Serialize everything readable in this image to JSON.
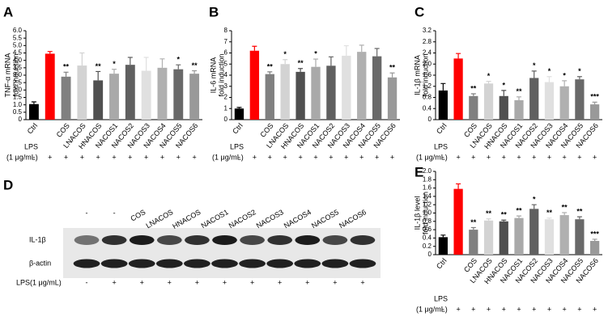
{
  "chart_data": [
    {
      "type": "bar",
      "panel": "A",
      "ylabel": [
        "TNF-α mRNA",
        "fold induction"
      ],
      "categories": [
        "Ctrl",
        null,
        "COS",
        "LNACOS",
        "HNACOS",
        "NACOS1",
        "NACOS2",
        "NACOS3",
        "NACOS4",
        "NACOS5",
        "NACOS6"
      ],
      "values": [
        1.05,
        4.45,
        2.9,
        3.65,
        2.65,
        3.1,
        3.7,
        3.3,
        3.5,
        3.4,
        3.1
      ],
      "errors": [
        0.15,
        0.15,
        0.3,
        0.85,
        0.6,
        0.3,
        0.5,
        0.9,
        0.6,
        0.3,
        0.2
      ],
      "annotations": [
        null,
        null,
        "**",
        null,
        "**",
        "*",
        null,
        null,
        null,
        "*",
        "**"
      ],
      "colors": [
        "#000000",
        "#ff0000",
        "#808080",
        "#d3d3d3",
        "#505050",
        "#a9a9a9",
        "#606060",
        "#e0e0e0",
        "#b0b0b0",
        "#696969",
        "#999999"
      ],
      "ylim": [
        0,
        6
      ],
      "yticks": [
        0,
        0.5,
        {
          "value": 1,
          "label": "1.0"
        },
        1.5,
        {
          "value": 2,
          "label": "2.0"
        },
        2.5,
        {
          "value": 3,
          "label": "3.0"
        },
        3.5,
        {
          "value": 4,
          "label": "4.0"
        },
        4.5,
        {
          "value": 5,
          "label": "5.0"
        },
        5.5,
        {
          "value": 6,
          "label": "6.0"
        }
      ],
      "treatment_label": [
        "LPS",
        "(1 μg/mL)"
      ],
      "treatment_signs": [
        "-",
        "+",
        "+",
        "+",
        "+",
        "+",
        "+",
        "+",
        "+",
        "+",
        "+"
      ]
    },
    {
      "type": "bar",
      "panel": "B",
      "ylabel": [
        "IL-6 mRNA",
        "fold induction"
      ],
      "categories": [
        "Ctrl",
        null,
        "COS",
        "LNACOS",
        "HNACOS",
        "NACOS1",
        "NACOS2",
        "NACOS3",
        "NACOS4",
        "NACOS5",
        "NACOS6"
      ],
      "values": [
        1.0,
        6.2,
        4.1,
        5.0,
        4.3,
        4.75,
        4.85,
        5.75,
        6.1,
        5.7,
        3.8
      ],
      "errors": [
        0.1,
        0.4,
        0.2,
        0.4,
        0.3,
        0.7,
        0.8,
        0.9,
        0.6,
        0.7,
        0.4
      ],
      "annotations": [
        null,
        null,
        "**",
        "*",
        "**",
        "*",
        null,
        null,
        null,
        null,
        "**"
      ],
      "colors": [
        "#000000",
        "#ff0000",
        "#808080",
        "#d3d3d3",
        "#505050",
        "#a9a9a9",
        "#606060",
        "#e0e0e0",
        "#b0b0b0",
        "#696969",
        "#999999"
      ],
      "ylim": [
        0,
        8
      ],
      "yticks": [
        0,
        1,
        2,
        3,
        4,
        5,
        6,
        7,
        8
      ],
      "treatment_label": [
        "LPS",
        "(1 μg/mL)"
      ],
      "treatment_signs": [
        "-",
        "+",
        "+",
        "+",
        "+",
        "+",
        "+",
        "+",
        "+",
        "+",
        "+"
      ]
    },
    {
      "type": "bar",
      "panel": "C",
      "ylabel": [
        "IL-1β mRNA",
        "fold induction"
      ],
      "categories": [
        "Ctrl",
        null,
        "COS",
        "LNACOS",
        "HNACOS",
        "NACOS1",
        "NACOS2",
        "NACOS3",
        "NACOS4",
        "NACOS5",
        "NACOS6"
      ],
      "values": [
        1.05,
        2.2,
        0.85,
        1.3,
        0.85,
        0.7,
        1.5,
        1.35,
        1.2,
        1.45,
        0.55
      ],
      "errors": [
        0.25,
        0.18,
        0.08,
        0.08,
        0.2,
        0.12,
        0.25,
        0.2,
        0.2,
        0.1,
        0.08
      ],
      "annotations": [
        null,
        null,
        "**",
        "*",
        "*",
        "**",
        "*",
        "*",
        "*",
        "*",
        "***"
      ],
      "colors": [
        "#000000",
        "#ff0000",
        "#808080",
        "#d3d3d3",
        "#505050",
        "#a9a9a9",
        "#606060",
        "#e0e0e0",
        "#b0b0b0",
        "#696969",
        "#999999"
      ],
      "ylim": [
        0,
        3.2
      ],
      "yticks": [
        0,
        0.4,
        0.8,
        1.2,
        1.6,
        {
          "value": 2,
          "label": "2.0"
        },
        2.4,
        2.8,
        3.2
      ],
      "treatment_label": [
        "LPS",
        "(1 μg/mL)"
      ],
      "treatment_signs": [
        "-",
        "+",
        "+",
        "+",
        "+",
        "+",
        "+",
        "+",
        "+",
        "+",
        "+"
      ]
    },
    {
      "type": "bar",
      "panel": "E",
      "ylabel": [
        "IL-1β level",
        "fold induction"
      ],
      "categories": [
        "Ctrl",
        null,
        "COS",
        "LNACOS",
        "HNACOS",
        "NACOS1",
        "NACOS2",
        "NACOS3",
        "NACOS4",
        "NACOS5",
        "NACOS6"
      ],
      "values": [
        0.42,
        1.58,
        0.6,
        0.82,
        0.8,
        0.88,
        1.1,
        0.85,
        0.95,
        0.85,
        0.33
      ],
      "errors": [
        0.05,
        0.12,
        0.05,
        0.04,
        0.03,
        0.05,
        0.1,
        0.03,
        0.06,
        0.06,
        0.04
      ],
      "annotations": [
        null,
        null,
        "**",
        "**",
        "**",
        "**",
        "*",
        "**",
        "**",
        "**",
        "***"
      ],
      "colors": [
        "#000000",
        "#ff0000",
        "#808080",
        "#d3d3d3",
        "#505050",
        "#a9a9a9",
        "#606060",
        "#e0e0e0",
        "#b0b0b0",
        "#696969",
        "#999999"
      ],
      "ylim": [
        0,
        2
      ],
      "yticks": [
        0,
        0.2,
        0.4,
        0.6,
        0.8,
        {
          "value": 1,
          "label": "1.0"
        },
        1.2,
        1.4,
        1.6,
        1.8,
        {
          "value": 2,
          "label": "2.0"
        }
      ],
      "treatment_label": [
        "LPS",
        "(1 μg/mL)"
      ],
      "treatment_signs": [
        "-",
        "+",
        "+",
        "+",
        "+",
        "+",
        "+",
        "+",
        "+",
        "+",
        "+"
      ]
    }
  ],
  "blot": {
    "panel": "D",
    "lanes": [
      "-",
      "-",
      "COS",
      "LNACOS",
      "HNACOS",
      "NACOS1",
      "NACOS2",
      "NACOS3",
      "NACOS4",
      "NACOS5",
      "NACOS6"
    ],
    "rows": [
      "IL-1β",
      "β-actin"
    ],
    "treatment_label": "LPS(1 μg/mL)",
    "treatment_signs": [
      "-",
      "+",
      "+",
      "+",
      "+",
      "+",
      "+",
      "+",
      "+",
      "+",
      "+"
    ]
  }
}
